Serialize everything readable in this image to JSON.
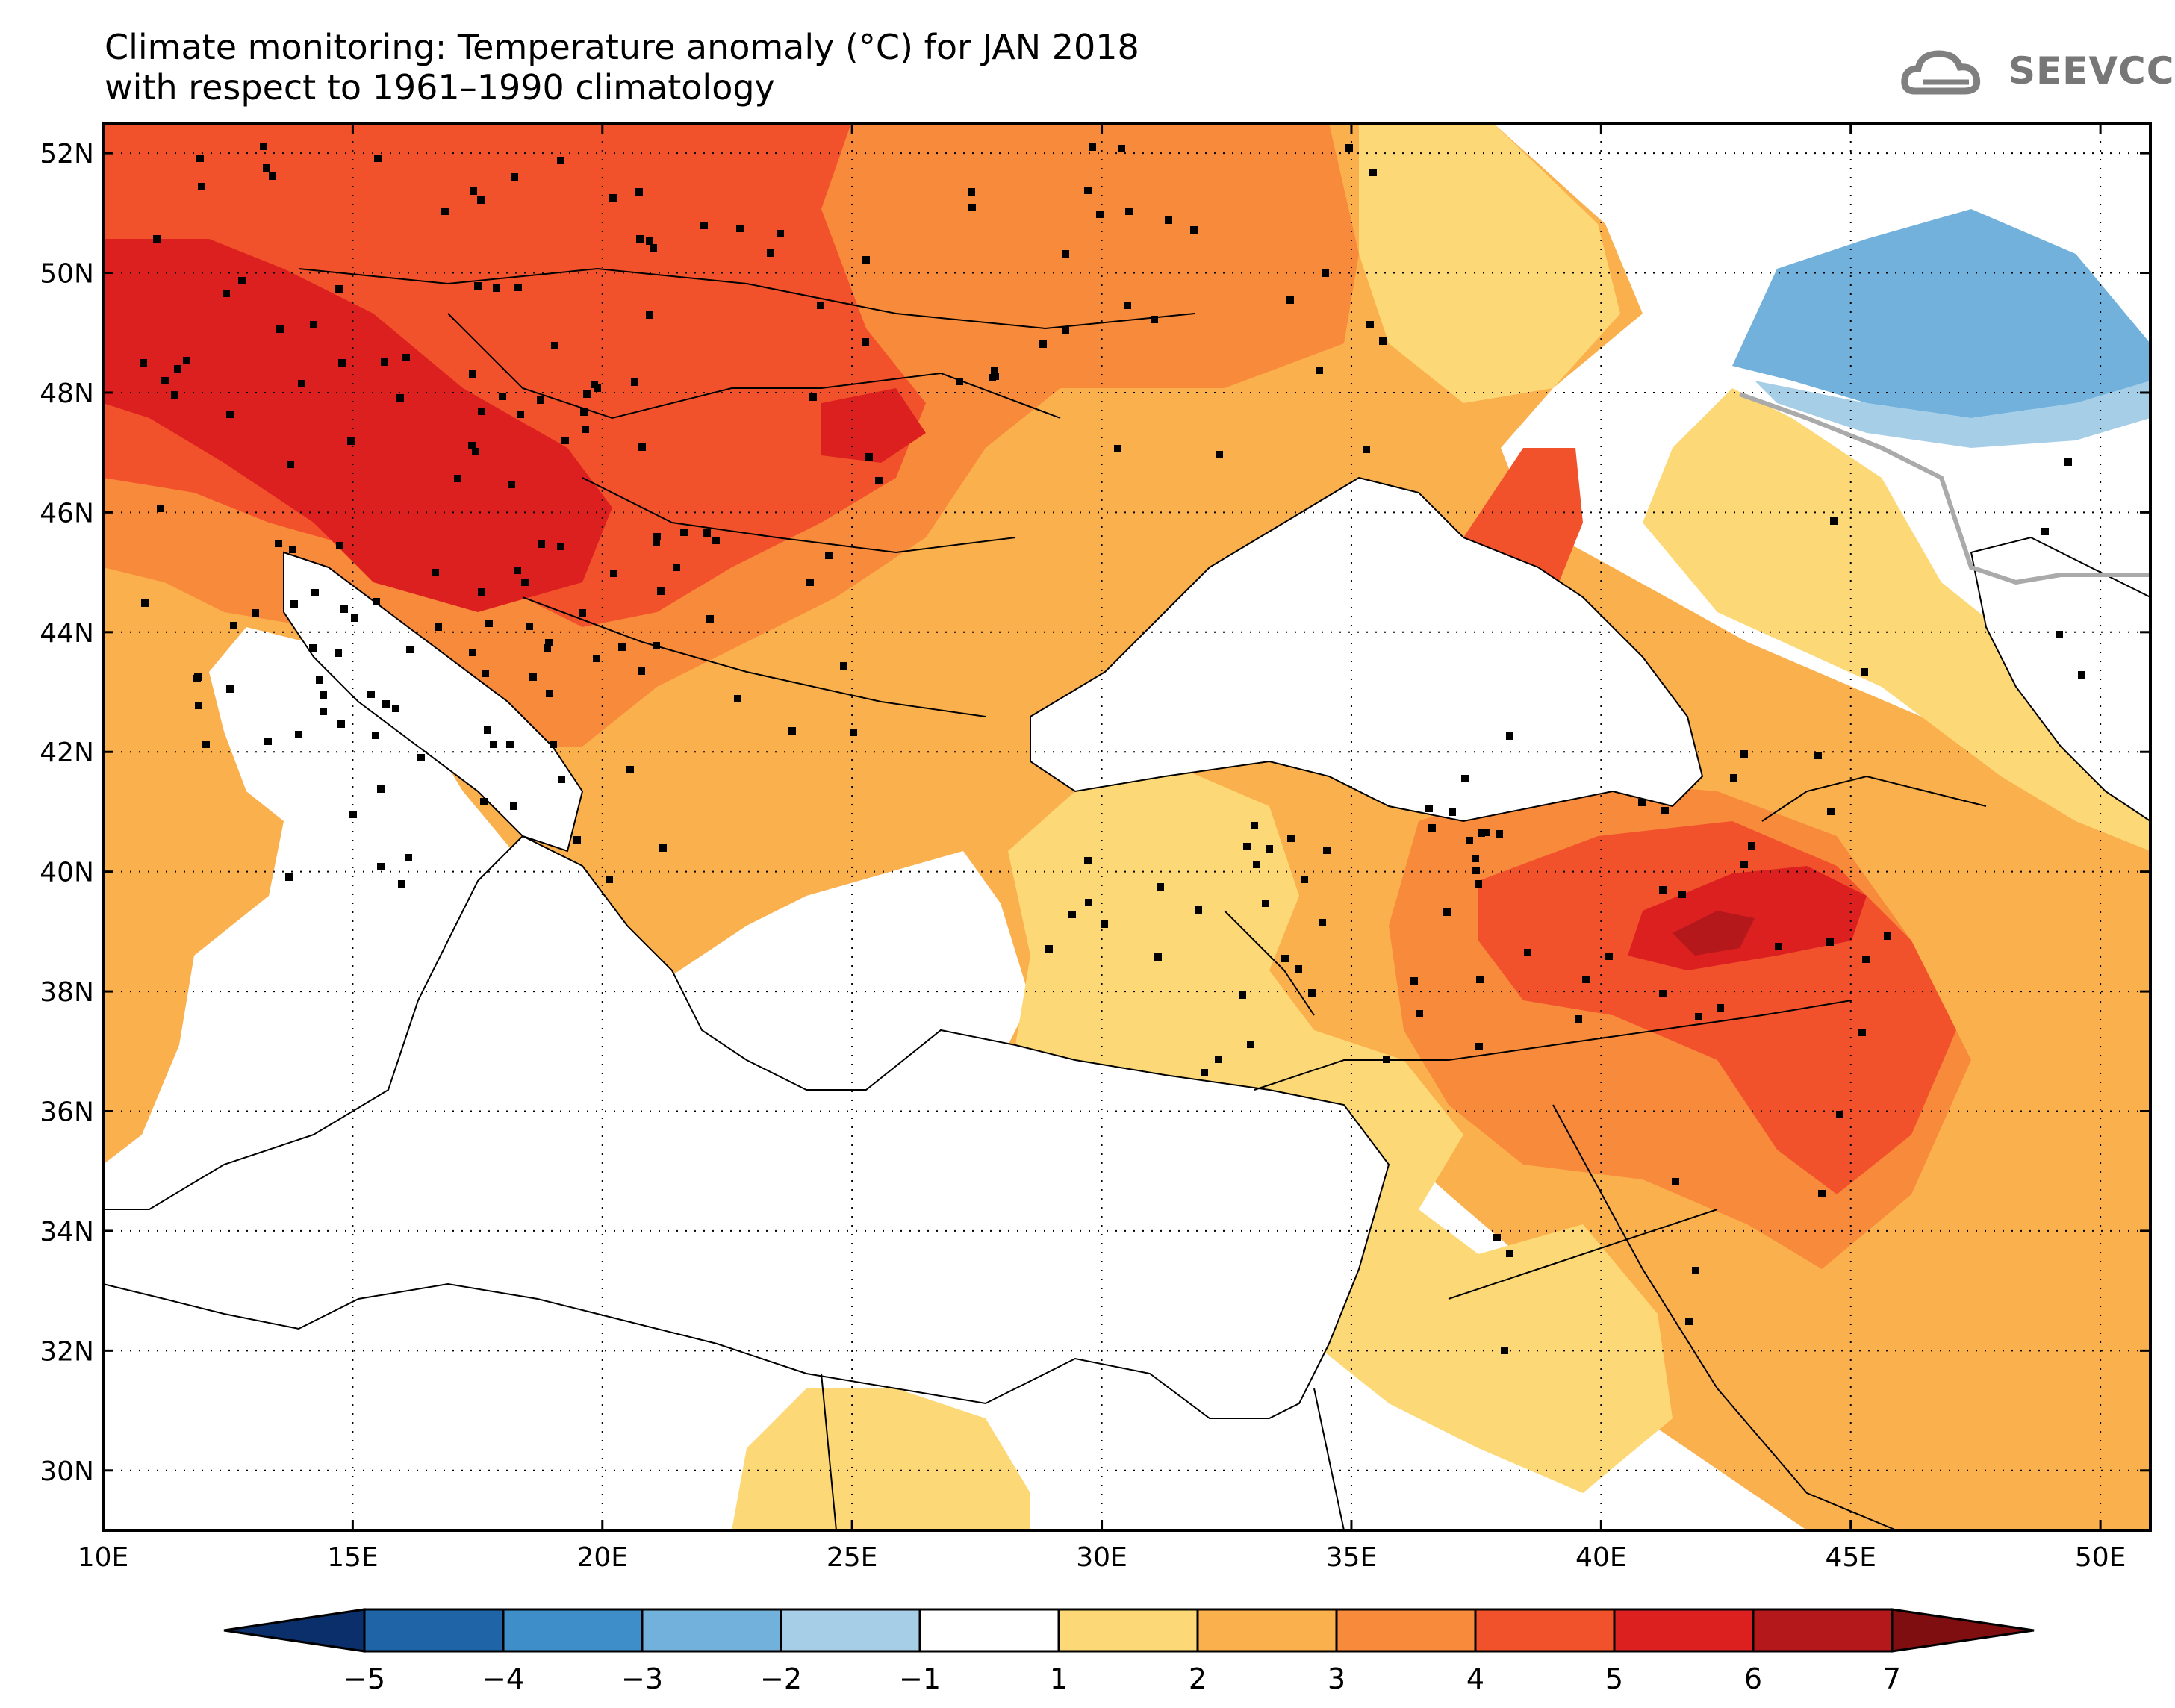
{
  "title": {
    "line1": "Climate monitoring: Temperature anomaly (°C) for JAN 2018",
    "line2": "with respect to 1961–1990 climatology"
  },
  "logo": {
    "text": "SEEVCCC",
    "icon": "cloud-icon"
  },
  "map": {
    "lon_range": [
      10,
      51
    ],
    "lat_range": [
      29,
      52.5
    ],
    "lon_ticks": [
      "10E",
      "15E",
      "20E",
      "25E",
      "30E",
      "35E",
      "40E",
      "45E",
      "50E"
    ],
    "lat_ticks": [
      "30N",
      "32N",
      "34N",
      "36N",
      "38N",
      "40N",
      "42N",
      "44N",
      "46N",
      "48N",
      "50N",
      "52N"
    ],
    "grid": "dotted"
  },
  "colorbar": {
    "labels": [
      "−5",
      "−4",
      "−3",
      "−2",
      "−1",
      "1",
      "2",
      "3",
      "4",
      "5",
      "6",
      "7"
    ],
    "colors": [
      "#0a2f6b",
      "#1f64a6",
      "#3e8ec9",
      "#72b1dc",
      "#a6cfe7",
      "#ffffff",
      "#fdd876",
      "#fbb04e",
      "#f88a3b",
      "#f2522b",
      "#dc2020",
      "#b5181b",
      "#7e0e10"
    ]
  }
}
